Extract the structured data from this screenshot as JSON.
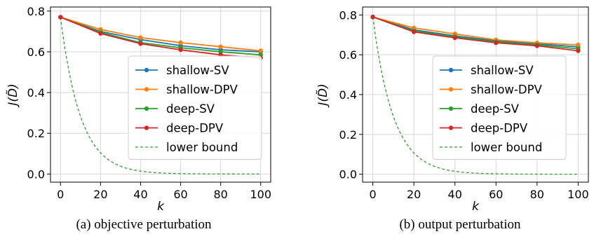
{
  "chart_data": [
    {
      "type": "line",
      "caption": "(a) objective perturbation",
      "xlabel": "k",
      "ylabel": "J(D̃)",
      "x": [
        0,
        20,
        40,
        60,
        80,
        100
      ],
      "xlim": [
        -5,
        105
      ],
      "ylim": [
        -0.04,
        0.82
      ],
      "xticks": [
        "0",
        "20",
        "40",
        "60",
        "80",
        "100"
      ],
      "yticks": [
        "0.0",
        "0.2",
        "0.4",
        "0.6",
        "0.8"
      ],
      "grid": true,
      "legend_position": "center-right",
      "series": [
        {
          "name": "shallow-SV",
          "color": "#1f77b4",
          "values": [
            0.77,
            0.7,
            0.66,
            0.63,
            0.61,
            0.6
          ]
        },
        {
          "name": "shallow-DPV",
          "color": "#ff7f0e",
          "values": [
            0.77,
            0.71,
            0.67,
            0.645,
            0.625,
            0.605
          ]
        },
        {
          "name": "deep-SV",
          "color": "#2ca02c",
          "values": [
            0.77,
            0.695,
            0.645,
            0.62,
            0.6,
            0.585
          ]
        },
        {
          "name": "deep-DPV",
          "color": "#d62728",
          "values": [
            0.77,
            0.69,
            0.64,
            0.61,
            0.585,
            0.57
          ]
        }
      ],
      "lower_bound": {
        "name": "lower bound",
        "color": "#2ca02c",
        "start": 0.77,
        "decay": 0.1,
        "style": "dashed"
      }
    },
    {
      "type": "line",
      "caption": "(b) output perturbation",
      "xlabel": "k",
      "ylabel": "J(D̃)",
      "x": [
        0,
        20,
        40,
        60,
        80,
        100
      ],
      "xlim": [
        -5,
        105
      ],
      "ylim": [
        -0.04,
        0.84
      ],
      "xticks": [
        "0",
        "20",
        "40",
        "60",
        "80",
        "100"
      ],
      "yticks": [
        "0.0",
        "0.2",
        "0.4",
        "0.6",
        "0.8"
      ],
      "grid": true,
      "legend_position": "center-right",
      "series": [
        {
          "name": "shallow-SV",
          "color": "#1f77b4",
          "values": [
            0.79,
            0.725,
            0.695,
            0.67,
            0.655,
            0.64
          ]
        },
        {
          "name": "shallow-DPV",
          "color": "#ff7f0e",
          "values": [
            0.79,
            0.735,
            0.705,
            0.675,
            0.66,
            0.65
          ]
        },
        {
          "name": "deep-SV",
          "color": "#2ca02c",
          "values": [
            0.79,
            0.72,
            0.69,
            0.665,
            0.65,
            0.63
          ]
        },
        {
          "name": "deep-DPV",
          "color": "#d62728",
          "values": [
            0.79,
            0.715,
            0.685,
            0.66,
            0.645,
            0.62
          ]
        }
      ],
      "lower_bound": {
        "name": "lower bound",
        "color": "#2ca02c",
        "start": 0.79,
        "decay": 0.1,
        "style": "dashed"
      }
    }
  ]
}
